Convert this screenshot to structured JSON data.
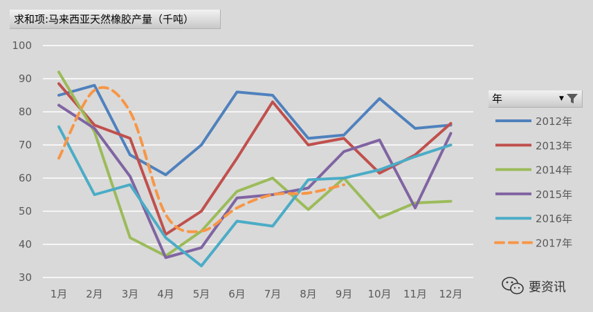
{
  "title_button": {
    "label": "求和项:马来西亚天然橡胶产量（千吨）"
  },
  "legend": {
    "header_label": "年"
  },
  "watermark": {
    "text": "要资讯"
  },
  "chart_data": {
    "type": "line",
    "categories": [
      "1月",
      "2月",
      "3月",
      "4月",
      "5月",
      "6月",
      "7月",
      "8月",
      "9月",
      "10月",
      "11月",
      "12月"
    ],
    "ylim": [
      30,
      100
    ],
    "yticks": [
      30,
      40,
      50,
      60,
      70,
      80,
      90,
      100
    ],
    "grid": true,
    "legend_position": "right",
    "series": [
      {
        "name": "2012年",
        "color": "#4f81bd",
        "dashed": false,
        "values": [
          85,
          88,
          67,
          61,
          70,
          86,
          85,
          72,
          73,
          84,
          75,
          76
        ]
      },
      {
        "name": "2013年",
        "color": "#c0504d",
        "dashed": false,
        "values": [
          88.5,
          76,
          72,
          43,
          50,
          66,
          83,
          70,
          72,
          61.5,
          67,
          76.5
        ]
      },
      {
        "name": "2014年",
        "color": "#9bbb59",
        "dashed": false,
        "values": [
          92,
          74,
          42,
          36.5,
          44,
          56,
          60,
          50.5,
          60,
          48,
          52.5,
          53
        ]
      },
      {
        "name": "2015年",
        "color": "#8064a2",
        "dashed": false,
        "values": [
          82,
          75,
          60.5,
          36,
          39,
          54,
          55,
          57,
          68,
          71.5,
          51,
          73.5
        ]
      },
      {
        "name": "2016年",
        "color": "#4bacc6",
        "dashed": false,
        "values": [
          75.5,
          55,
          58,
          42,
          33.5,
          47,
          45.5,
          59.5,
          60,
          62.5,
          66.5,
          70
        ]
      },
      {
        "name": "2017年",
        "color": "#f79646",
        "dashed": true,
        "values": [
          66,
          86.5,
          80,
          49,
          44,
          51,
          55,
          55.5,
          58,
          null,
          null,
          null
        ]
      }
    ]
  }
}
